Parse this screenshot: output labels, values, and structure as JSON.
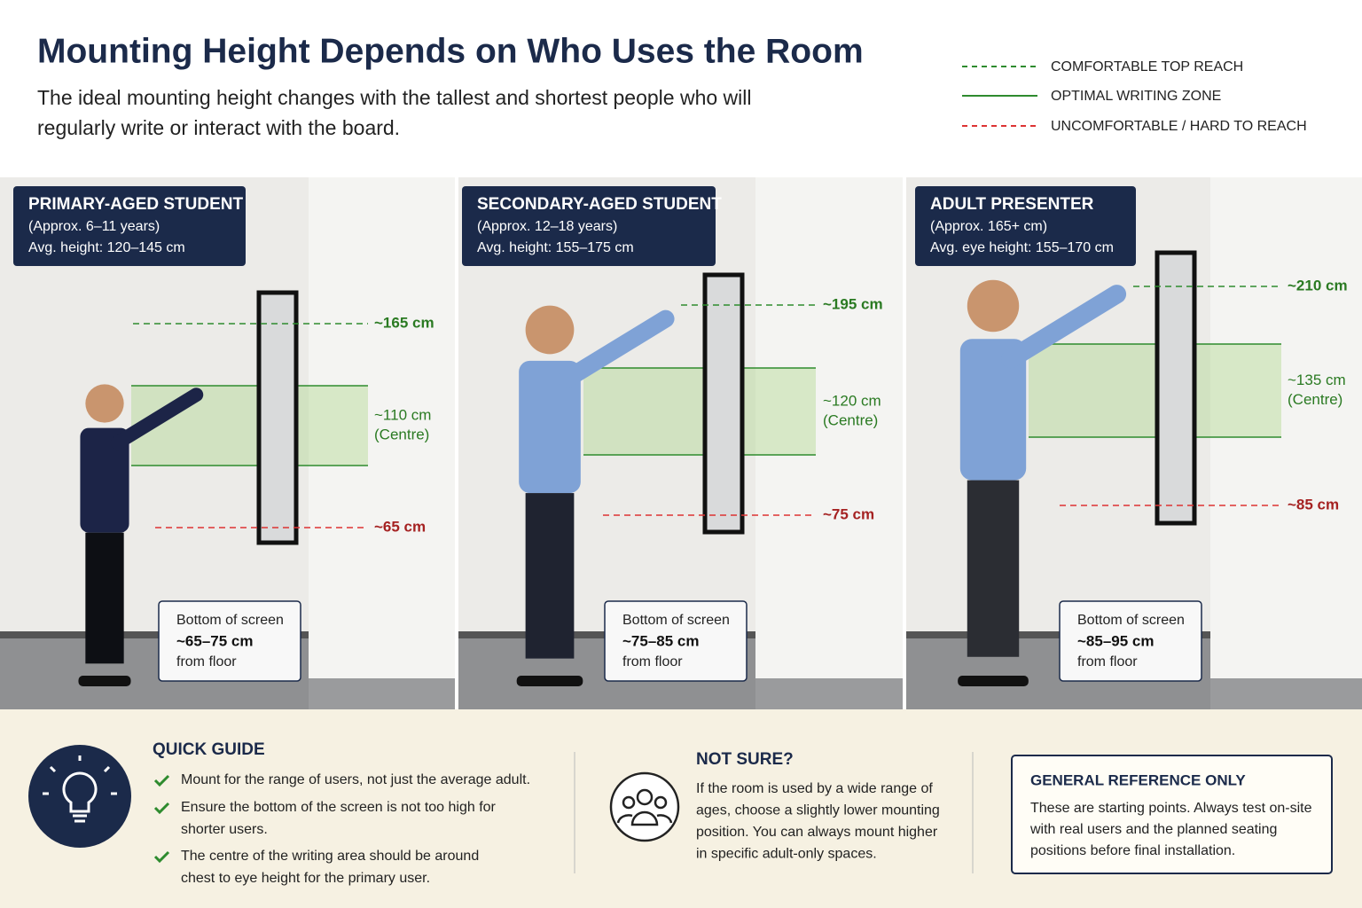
{
  "header": {
    "title": "Mounting Height Depends on Who Uses the Room",
    "subtitle": [
      "The ideal mounting height changes with the tallest and shortest people who will",
      "regularly write or interact with the board."
    ]
  },
  "legend": [
    "COMFORTABLE TOP REACH",
    "OPTIMAL WRITING ZONE",
    "UNCOMFORTABLE / HARD TO REACH"
  ],
  "panels": [
    {
      "title": "PRIMARY-AGED STUDENT",
      "details": [
        "(Approx. 6–11 years)",
        "Avg. height: 120–145 cm"
      ],
      "top": "~165 cm",
      "centre": "~110 cm",
      "centre_note": "(Centre)",
      "bottom": "~65 cm",
      "screen_box": [
        "Bottom of screen",
        "~65–75 cm",
        "from floor"
      ]
    },
    {
      "title": "SECONDARY-AGED STUDENT",
      "details": [
        "(Approx. 12–18 years)",
        "Avg. height: 155–175 cm"
      ],
      "top": "~195 cm",
      "centre": "~120 cm",
      "centre_note": "(Centre)",
      "bottom": "~75 cm",
      "screen_box": [
        "Bottom of screen",
        "~75–85 cm",
        "from floor"
      ]
    },
    {
      "title": "ADULT PRESENTER",
      "details": [
        "(Approx. 165+ cm)",
        "Avg. eye height: 155–170 cm"
      ],
      "top": "~210 cm",
      "centre": "~135 cm",
      "centre_note": "(Centre)",
      "bottom": "~85 cm",
      "screen_box": [
        "Bottom of screen",
        "~85–95 cm",
        "from floor"
      ]
    }
  ],
  "footer": {
    "quick_guide": {
      "title": "QUICK GUIDE",
      "items": [
        [
          "Mount for the range of users, not just the average adult."
        ],
        [
          "Ensure the bottom of the screen is not too high for",
          "shorter users."
        ],
        [
          "The centre of the writing area should be around",
          "chest to eye height for the primary user."
        ]
      ]
    },
    "not_sure": {
      "title": "NOT SURE?",
      "lines": [
        "If the room is used by a wide range of",
        "ages, choose a slightly lower mounting",
        "position. You can always mount higher",
        "in specific adult-only spaces."
      ]
    },
    "reference": {
      "title": "GENERAL REFERENCE ONLY",
      "lines": [
        "These are starting points. Always test on-site",
        "with real users and the planned seating",
        "positions before final installation."
      ]
    }
  }
}
